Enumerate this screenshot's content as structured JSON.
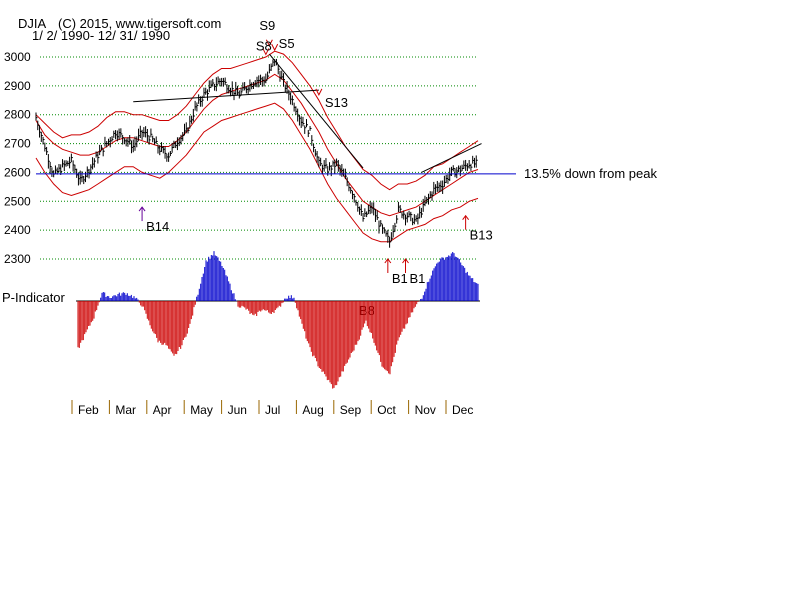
{
  "chart_data": {
    "type": "line",
    "title": "DJIA",
    "copyright": "(C) 2015, www.tigersoft.com",
    "date_range": "1/ 2/ 1990- 12/ 31/ 1990",
    "ylim": [
      2300,
      3000
    ],
    "y_ticks": [
      "3000",
      "2900",
      "2800",
      "2700",
      "2600",
      "2500",
      "2400",
      "2300"
    ],
    "months": [
      "Feb",
      "Mar",
      "Apr",
      "May",
      "Jun",
      "Jul",
      "Aug",
      "Sep",
      "Oct",
      "Nov",
      "Dec"
    ],
    "reference_line": {
      "value": 2595,
      "label": "13.5% down from peak"
    },
    "price": {
      "x": [
        0,
        5,
        10,
        15,
        20,
        25,
        30,
        35,
        40,
        45,
        50,
        55,
        60,
        65,
        70,
        75,
        80,
        85,
        90,
        95,
        100,
        105,
        110,
        115,
        120,
        125,
        130,
        135,
        140,
        145,
        150,
        155,
        160,
        165,
        170,
        175,
        180,
        185,
        190,
        195,
        200,
        205,
        210,
        215,
        220,
        225,
        230,
        235,
        240,
        245,
        250
      ],
      "values": [
        2790,
        2690,
        2590,
        2620,
        2640,
        2570,
        2610,
        2660,
        2700,
        2740,
        2720,
        2690,
        2740,
        2720,
        2680,
        2660,
        2710,
        2740,
        2820,
        2870,
        2900,
        2920,
        2890,
        2870,
        2900,
        2920,
        2920,
        2990,
        2910,
        2850,
        2780,
        2740,
        2630,
        2610,
        2630,
        2580,
        2520,
        2440,
        2480,
        2410,
        2360,
        2470,
        2450,
        2430,
        2490,
        2540,
        2560,
        2600,
        2610,
        2630,
        2630
      ]
    },
    "upper_band": [
      2800,
      2770,
      2740,
      2720,
      2730,
      2730,
      2740,
      2760,
      2790,
      2810,
      2810,
      2800,
      2800,
      2790,
      2780,
      2780,
      2800,
      2830,
      2870,
      2910,
      2940,
      2960,
      2960,
      2970,
      2980,
      2990,
      3000,
      3020,
      3010,
      2980,
      2940,
      2900,
      2850,
      2790,
      2740,
      2690,
      2650,
      2610,
      2590,
      2560,
      2540,
      2560,
      2560,
      2570,
      2590,
      2620,
      2630,
      2650,
      2670,
      2690,
      2710
    ],
    "lower_band": [
      2650,
      2600,
      2560,
      2530,
      2520,
      2530,
      2540,
      2560,
      2580,
      2600,
      2620,
      2620,
      2600,
      2590,
      2580,
      2600,
      2630,
      2660,
      2700,
      2740,
      2760,
      2780,
      2790,
      2800,
      2810,
      2820,
      2830,
      2840,
      2820,
      2780,
      2730,
      2680,
      2620,
      2560,
      2510,
      2470,
      2430,
      2390,
      2370,
      2360,
      2360,
      2380,
      2400,
      2410,
      2420,
      2440,
      2450,
      2470,
      2480,
      2500,
      2510
    ],
    "moving_average": [
      2780,
      2730,
      2700,
      2680,
      2670,
      2660,
      2660,
      2670,
      2690,
      2710,
      2720,
      2720,
      2710,
      2700,
      2690,
      2690,
      2710,
      2740,
      2780,
      2820,
      2850,
      2870,
      2880,
      2890,
      2900,
      2910,
      2920,
      2940,
      2920,
      2880,
      2840,
      2790,
      2740,
      2680,
      2630,
      2580,
      2540,
      2500,
      2480,
      2460,
      2450,
      2460,
      2470,
      2480,
      2500,
      2520,
      2540,
      2560,
      2580,
      2600,
      2610
    ],
    "trendlines": [
      {
        "name": "neckline",
        "x": [
          55,
          160
        ],
        "y": [
          2845,
          2885
        ]
      },
      {
        "name": "downtrend",
        "x": [
          132,
          185
        ],
        "y": [
          3010,
          2615
        ]
      },
      {
        "name": "uptrend",
        "x": [
          218,
          252
        ],
        "y": [
          2600,
          2700
        ]
      }
    ],
    "signals": [
      {
        "label": "S9",
        "type": "sell",
        "x": 132,
        "y_value": 3025
      },
      {
        "label": "S8",
        "type": "sell",
        "x": 130,
        "y_value": 2995
      },
      {
        "label": "S5",
        "type": "sell",
        "x": 135,
        "y_value": 3010
      },
      {
        "label": "S13",
        "type": "sell",
        "x": 160,
        "y_value": 2855
      },
      {
        "label": "B14",
        "type": "buy",
        "x": 60,
        "y_value": 2480
      },
      {
        "label": "B1",
        "type": "buy",
        "x": 199,
        "y_value": 2300
      },
      {
        "label": "B1",
        "type": "buy",
        "x": 209,
        "y_value": 2300
      },
      {
        "label": "B13",
        "type": "buy",
        "x": 243,
        "y_value": 2450
      },
      {
        "label": "B8",
        "type": "buy",
        "x": 186,
        "y_value": 0.03
      }
    ],
    "p_indicator": {
      "label": "P-Indicator",
      "values": [
        -0.6,
        -0.4,
        -0.2,
        0.1,
        0.05,
        0.08,
        0.1,
        0.05,
        -0.05,
        -0.3,
        -0.5,
        -0.55,
        -0.7,
        -0.55,
        -0.3,
        0.1,
        0.5,
        0.6,
        0.45,
        0.2,
        -0.05,
        -0.1,
        -0.2,
        -0.1,
        -0.15,
        -0.1,
        0.05,
        0.05,
        -0.3,
        -0.6,
        -0.8,
        -0.95,
        -1.1,
        -0.9,
        -0.7,
        -0.5,
        -0.25,
        -0.5,
        -0.8,
        -0.9,
        -0.5,
        -0.3,
        -0.1,
        0.05,
        0.3,
        0.5,
        0.55,
        0.6,
        0.45,
        0.3,
        0.2
      ]
    }
  }
}
